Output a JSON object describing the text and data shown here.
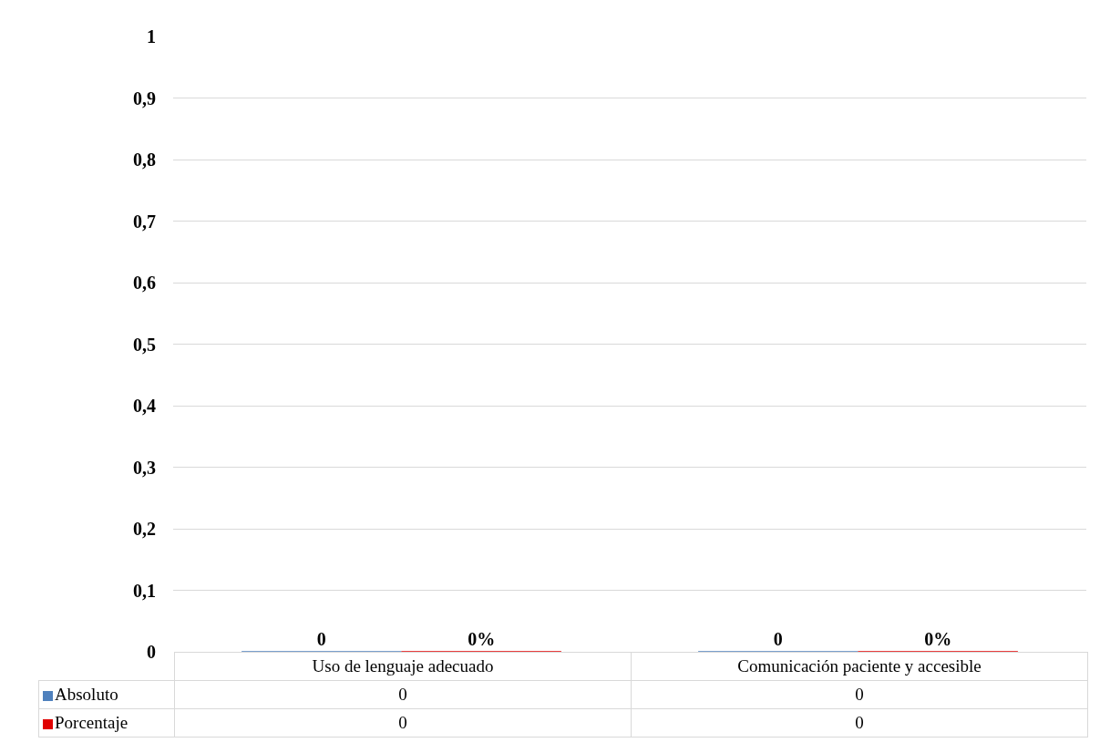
{
  "chart_data": {
    "type": "bar",
    "categories": [
      "Uso de lenguaje adecuado",
      "Comunicación paciente y accesible"
    ],
    "series": [
      {
        "name": "Absoluto",
        "color": "#4f81bd",
        "values": [
          0,
          0
        ],
        "value_labels": [
          "0",
          "0"
        ]
      },
      {
        "name": "Porcentaje",
        "color": "#e00000",
        "values": [
          0,
          0
        ],
        "value_labels": [
          "0%",
          "0%"
        ]
      }
    ],
    "ylim": [
      0,
      1
    ],
    "yticks": [
      0,
      {
        "value": 0.1,
        "label": "0,1"
      },
      {
        "value": 0.2,
        "label": "0,2"
      },
      {
        "value": 0.3,
        "label": "0,3"
      },
      {
        "value": 0.4,
        "label": "0,4"
      },
      {
        "value": 0.5,
        "label": "0,5"
      },
      {
        "value": 0.6,
        "label": "0,6"
      },
      {
        "value": 0.7,
        "label": "0,7"
      },
      {
        "value": 0.8,
        "label": "0,8"
      },
      {
        "value": 0.9,
        "label": "0,9"
      },
      1
    ],
    "grid": "y",
    "legend": "bottom left",
    "annotations": [
      "0",
      "0",
      "0",
      "0"
    ]
  }
}
